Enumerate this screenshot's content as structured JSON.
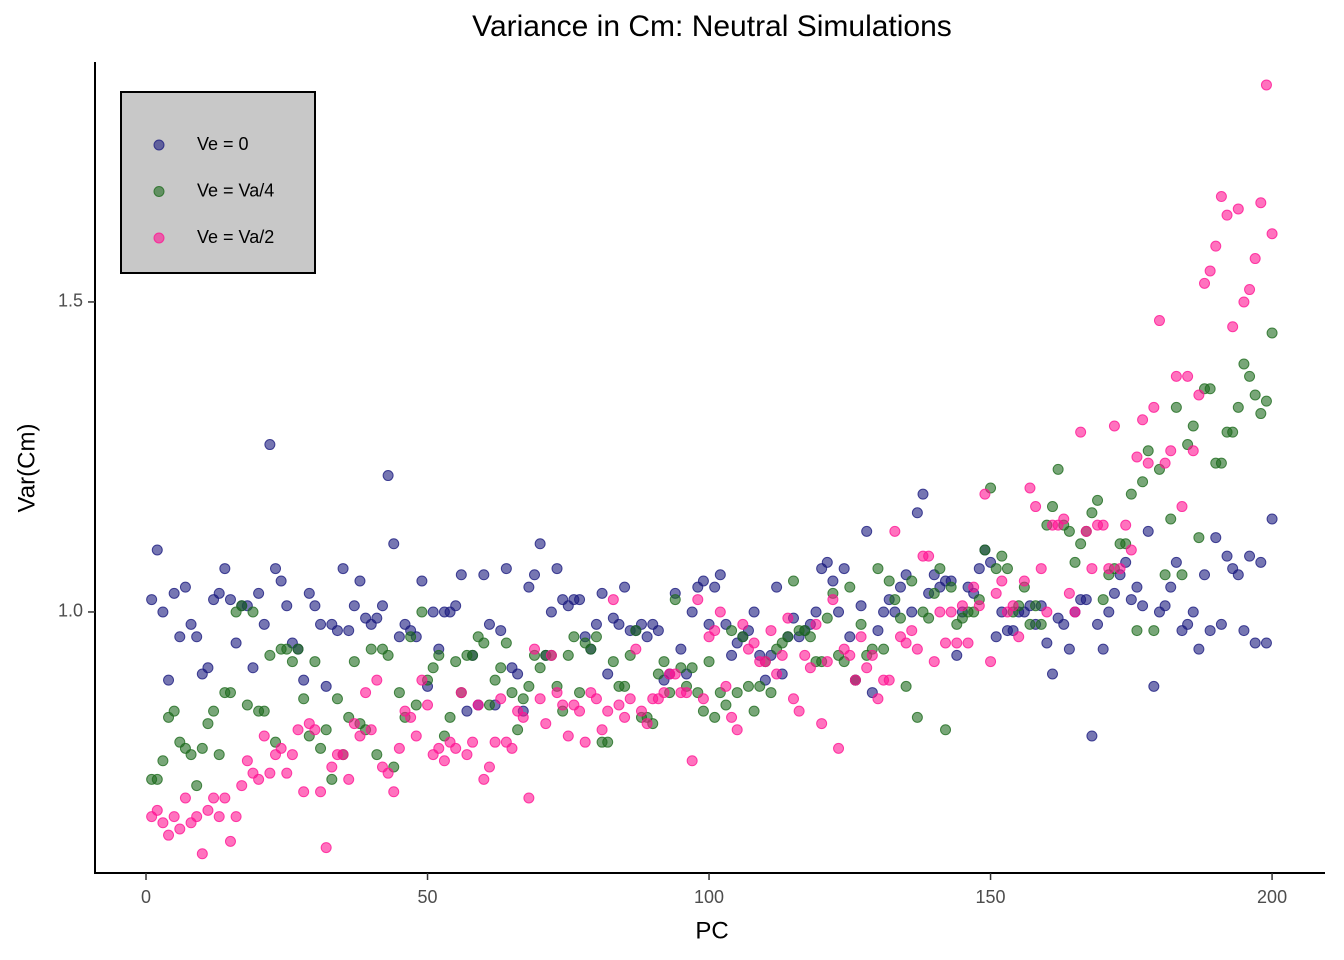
{
  "chart_data": {
    "type": "scatter",
    "title": "Variance in Cm: Neutral Simulations",
    "xlabel": "PC",
    "ylabel": "Var(Cm)",
    "xlim": [
      -9.06,
      209.4
    ],
    "ylim": [
      0.579,
      1.887
    ],
    "xticks": [
      0,
      50,
      100,
      150,
      200
    ],
    "yticks": [
      {
        "value": 1,
        "label": "1.0"
      },
      1.5
    ],
    "legend": "top-left",
    "x": [
      1,
      2,
      3,
      4,
      5,
      6,
      7,
      8,
      9,
      10,
      11,
      12,
      13,
      14,
      15,
      16,
      17,
      18,
      19,
      20,
      21,
      22,
      23,
      24,
      25,
      26,
      27,
      28,
      29,
      30,
      31,
      32,
      33,
      34,
      35,
      36,
      37,
      38,
      39,
      40,
      41,
      42,
      43,
      44,
      45,
      46,
      47,
      48,
      49,
      50,
      51,
      52,
      53,
      54,
      55,
      56,
      57,
      58,
      59,
      60,
      61,
      62,
      63,
      64,
      65,
      66,
      67,
      68,
      69,
      70,
      71,
      72,
      73,
      74,
      75,
      76,
      77,
      78,
      79,
      80,
      81,
      82,
      83,
      84,
      85,
      86,
      87,
      88,
      89,
      90,
      91,
      92,
      93,
      94,
      95,
      96,
      97,
      98,
      99,
      100,
      101,
      102,
      103,
      104,
      105,
      106,
      107,
      108,
      109,
      110,
      111,
      112,
      113,
      114,
      115,
      116,
      117,
      118,
      119,
      120,
      121,
      122,
      123,
      124,
      125,
      126,
      127,
      128,
      129,
      130,
      131,
      132,
      133,
      134,
      135,
      136,
      137,
      138,
      139,
      140,
      141,
      142,
      143,
      144,
      145,
      146,
      147,
      148,
      149,
      150,
      151,
      152,
      153,
      154,
      155,
      156,
      157,
      158,
      159,
      160,
      161,
      162,
      163,
      164,
      165,
      166,
      167,
      168,
      169,
      170,
      171,
      172,
      173,
      174,
      175,
      176,
      177,
      178,
      179,
      180,
      181,
      182,
      183,
      184,
      185,
      186,
      187,
      188,
      189,
      190,
      191,
      192,
      193,
      194,
      195,
      196,
      197,
      198,
      199,
      200
    ],
    "series": [
      {
        "name": "Ve = 0",
        "color": "#1b1b7f",
        "values": [
          1.02,
          1.1,
          1.0,
          0.89,
          1.03,
          0.96,
          1.04,
          0.98,
          0.96,
          0.9,
          0.91,
          1.02,
          1.03,
          1.07,
          1.02,
          0.95,
          1.01,
          1.01,
          0.91,
          1.03,
          0.98,
          1.27,
          1.07,
          1.05,
          1.01,
          0.95,
          0.94,
          0.89,
          1.03,
          1.01,
          0.98,
          0.88,
          0.98,
          0.97,
          1.07,
          0.97,
          1.01,
          1.05,
          0.99,
          0.98,
          0.99,
          1.01,
          1.22,
          1.11,
          0.96,
          0.98,
          0.97,
          0.96,
          1.05,
          0.88,
          1.0,
          0.94,
          1.0,
          1.0,
          1.01,
          1.06,
          0.84,
          0.93,
          0.85,
          1.06,
          0.98,
          0.85,
          0.97,
          1.07,
          0.91,
          0.9,
          0.84,
          1.04,
          1.06,
          1.11,
          0.93,
          1.0,
          1.07,
          1.02,
          1.01,
          1.02,
          1.02,
          0.96,
          0.94,
          0.98,
          1.03,
          0.9,
          0.99,
          0.98,
          1.04,
          0.97,
          0.97,
          0.98,
          0.96,
          0.98,
          0.97,
          0.89,
          0.9,
          1.03,
          0.94,
          0.9,
          1.0,
          1.04,
          1.05,
          0.98,
          1.04,
          1.06,
          0.98,
          0.93,
          0.95,
          0.96,
          0.97,
          1.0,
          0.93,
          0.89,
          0.93,
          1.04,
          0.9,
          0.96,
          0.99,
          0.96,
          0.97,
          0.98,
          1.0,
          1.07,
          1.08,
          1.05,
          1.0,
          1.07,
          0.96,
          0.89,
          1.01,
          1.13,
          0.87,
          0.97,
          1.0,
          1.02,
          1.0,
          1.04,
          1.06,
          1.0,
          1.16,
          1.19,
          1.03,
          1.06,
          1.04,
          1.05,
          1.05,
          0.93,
          1.0,
          1.04,
          1.03,
          1.07,
          1.1,
          1.08,
          0.96,
          1.0,
          0.97,
          0.97,
          1.0,
          1.0,
          1.01,
          0.98,
          1.01,
          0.95,
          0.9,
          0.99,
          0.98,
          0.94,
          1.0,
          1.02,
          1.02,
          0.8,
          0.98,
          0.94,
          1.0,
          1.03,
          1.06,
          1.08,
          1.02,
          1.04,
          1.01,
          1.13,
          0.88,
          1.0,
          1.01,
          1.04,
          1.08,
          0.97,
          0.98,
          1.0,
          0.94,
          1.06,
          0.97,
          1.12,
          0.98,
          1.09,
          1.07,
          1.06,
          0.97,
          1.09,
          0.95,
          1.08,
          0.95,
          1.15
        ]
      },
      {
        "name": "Ve = Va/4",
        "color": "#1e6b1e",
        "values": [
          0.73,
          0.73,
          0.76,
          0.83,
          0.84,
          0.79,
          0.78,
          0.77,
          0.72,
          0.78,
          0.82,
          0.84,
          0.77,
          0.87,
          0.87,
          1.0,
          1.01,
          0.85,
          1.0,
          0.84,
          0.84,
          0.93,
          0.79,
          0.94,
          0.94,
          0.92,
          0.94,
          0.86,
          0.8,
          0.92,
          0.78,
          0.81,
          0.73,
          0.86,
          0.77,
          0.83,
          0.92,
          0.82,
          0.81,
          0.94,
          0.77,
          0.94,
          0.93,
          0.75,
          0.87,
          0.83,
          0.96,
          0.85,
          1.0,
          0.89,
          0.91,
          0.93,
          0.8,
          0.83,
          0.92,
          0.87,
          0.93,
          0.93,
          0.96,
          0.95,
          0.85,
          0.89,
          0.91,
          0.95,
          0.87,
          0.81,
          0.86,
          0.88,
          0.93,
          0.91,
          0.93,
          0.93,
          0.88,
          0.84,
          0.93,
          0.96,
          0.87,
          0.95,
          0.94,
          0.96,
          0.79,
          0.79,
          0.92,
          0.88,
          0.88,
          0.93,
          0.97,
          0.83,
          0.83,
          0.82,
          0.9,
          0.92,
          0.87,
          1.02,
          0.91,
          0.88,
          0.91,
          0.87,
          0.84,
          0.92,
          0.83,
          0.87,
          0.85,
          0.97,
          0.87,
          0.96,
          0.88,
          0.84,
          0.88,
          0.92,
          0.87,
          0.94,
          0.95,
          0.96,
          1.05,
          0.97,
          0.97,
          0.96,
          0.92,
          0.92,
          0.99,
          1.03,
          0.93,
          0.92,
          1.04,
          0.89,
          0.98,
          0.93,
          0.94,
          1.07,
          0.94,
          1.05,
          1.02,
          0.99,
          0.88,
          1.05,
          0.83,
          1.0,
          0.99,
          1.03,
          1.07,
          0.81,
          1.04,
          0.98,
          0.99,
          1.0,
          1.0,
          1.02,
          1.1,
          1.2,
          1.07,
          1.09,
          1.07,
          1.0,
          1.01,
          1.04,
          0.98,
          1.01,
          0.98,
          1.14,
          1.17,
          1.23,
          1.14,
          1.13,
          1.08,
          1.11,
          1.13,
          1.16,
          1.18,
          1.02,
          1.06,
          1.07,
          1.11,
          1.11,
          1.19,
          0.97,
          1.21,
          1.26,
          0.97,
          1.23,
          1.06,
          1.15,
          1.33,
          1.06,
          1.27,
          1.3,
          1.12,
          1.36,
          1.36,
          1.24,
          1.24,
          1.29,
          1.29,
          1.33,
          1.4,
          1.38,
          1.35,
          1.32,
          1.34,
          1.45
        ]
      },
      {
        "name": "Ve = Va/2",
        "color": "#ff1493",
        "values": [
          0.67,
          0.68,
          0.66,
          0.64,
          0.67,
          0.65,
          0.7,
          0.66,
          0.67,
          0.61,
          0.68,
          0.7,
          0.67,
          0.7,
          0.63,
          0.67,
          0.72,
          0.76,
          0.74,
          0.73,
          0.8,
          0.74,
          0.77,
          0.78,
          0.74,
          0.77,
          0.81,
          0.71,
          0.82,
          0.81,
          0.71,
          0.62,
          0.75,
          0.77,
          0.77,
          0.73,
          0.82,
          0.8,
          0.87,
          0.81,
          0.89,
          0.75,
          0.74,
          0.71,
          0.78,
          0.84,
          0.83,
          0.8,
          0.89,
          0.85,
          0.77,
          0.78,
          0.76,
          0.79,
          0.78,
          0.87,
          0.77,
          0.79,
          0.85,
          0.73,
          0.75,
          0.79,
          0.86,
          0.79,
          0.78,
          0.84,
          0.83,
          0.7,
          0.94,
          0.86,
          0.82,
          0.93,
          0.87,
          0.85,
          0.8,
          0.85,
          0.84,
          0.79,
          0.87,
          0.86,
          0.81,
          0.84,
          1.02,
          0.85,
          0.83,
          0.86,
          0.94,
          0.84,
          0.82,
          0.86,
          0.86,
          0.87,
          0.9,
          0.9,
          0.87,
          0.87,
          0.76,
          1.02,
          0.86,
          0.96,
          0.97,
          1.0,
          0.88,
          0.83,
          0.81,
          0.98,
          0.94,
          0.95,
          0.92,
          0.92,
          0.97,
          0.9,
          0.93,
          0.99,
          0.86,
          0.84,
          0.93,
          0.91,
          0.98,
          0.82,
          0.92,
          1.02,
          0.78,
          0.94,
          0.93,
          0.89,
          0.96,
          0.91,
          0.93,
          0.86,
          0.89,
          0.89,
          1.13,
          0.96,
          0.95,
          0.97,
          0.94,
          1.09,
          1.09,
          0.92,
          1.0,
          0.95,
          1.0,
          0.95,
          1.01,
          0.95,
          1.04,
          1.01,
          1.19,
          0.92,
          1.03,
          1.05,
          1.0,
          1.01,
          0.96,
          1.05,
          1.2,
          1.17,
          1.07,
          1.0,
          1.14,
          1.14,
          1.15,
          1.03,
          1.0,
          1.29,
          1.13,
          1.07,
          1.14,
          1.14,
          1.07,
          1.3,
          1.07,
          1.14,
          1.1,
          1.25,
          1.31,
          1.24,
          1.33,
          1.47,
          1.24,
          1.26,
          1.38,
          1.17,
          1.38,
          1.26,
          1.35,
          1.53,
          1.55,
          1.59,
          1.67,
          1.64,
          1.46,
          1.65,
          1.5,
          1.52,
          1.57,
          1.66,
          1.85,
          1.61
        ]
      }
    ]
  }
}
